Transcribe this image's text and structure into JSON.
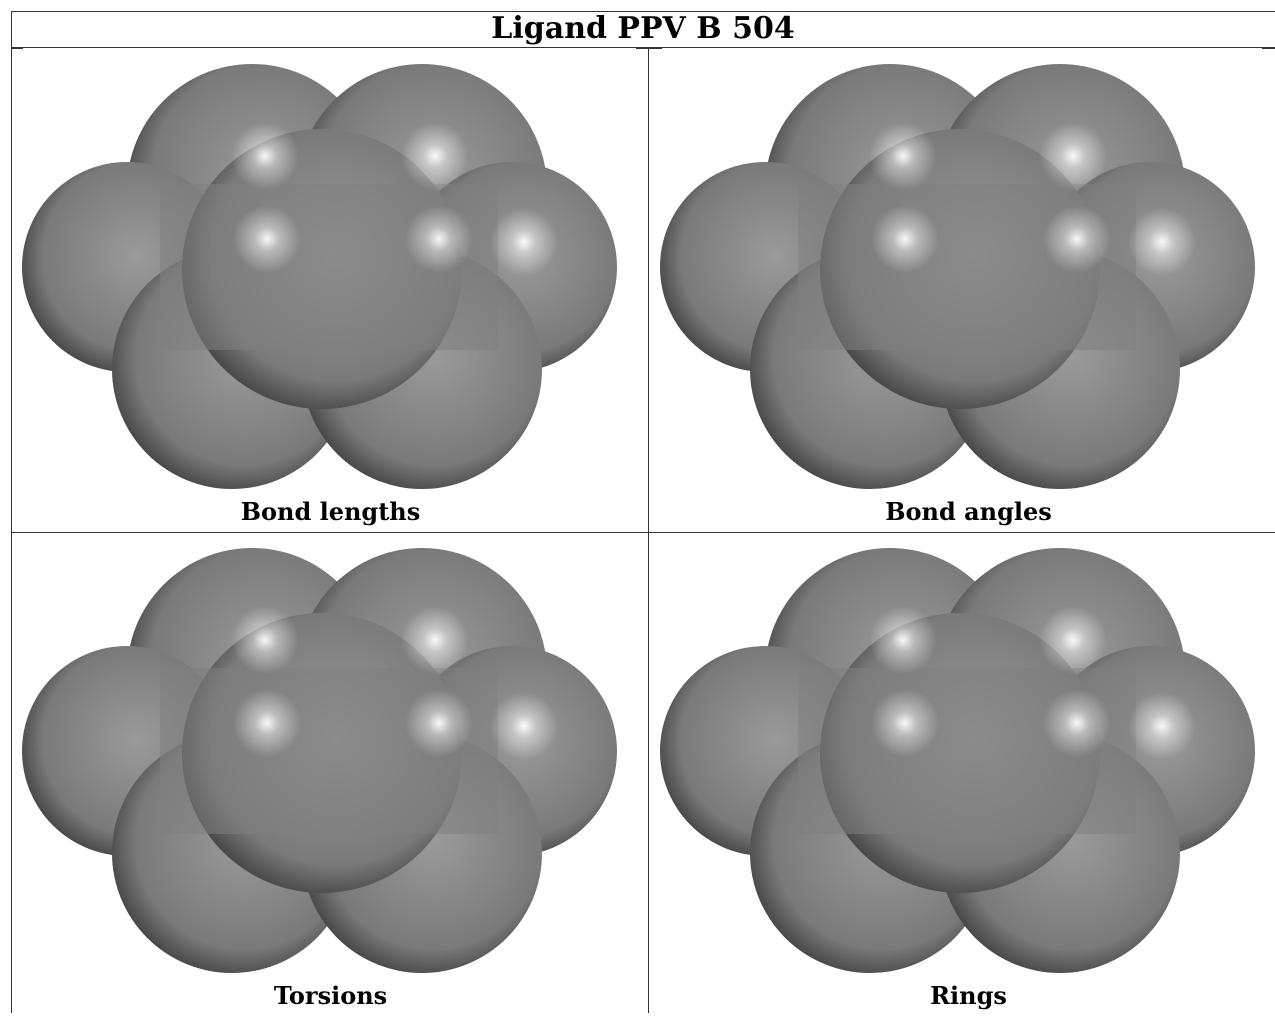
{
  "title": "Ligand PPV B 504",
  "panels": [
    {
      "caption": "Bond lengths"
    },
    {
      "caption": "Bond angles"
    },
    {
      "caption": "Torsions"
    },
    {
      "caption": "Rings"
    }
  ],
  "colors": {
    "sphere_light": "#9a9a9a",
    "sphere_mid": "#7a7a7a",
    "sphere_dark": "#3c3c3c",
    "highlight": "#ffffff",
    "border": "#333333"
  }
}
